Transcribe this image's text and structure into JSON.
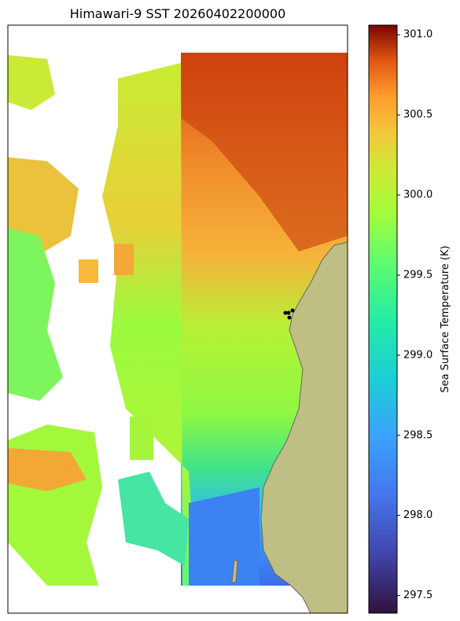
{
  "title": "Himawari-9 SST 20260402200000",
  "colorbar": {
    "label": "Sea Surface Temperature (K)",
    "lim": [
      297.39,
      301.06
    ],
    "ticks": [
      297.5,
      {
        "value": 298,
        "label": "298.0"
      },
      298.5,
      {
        "value": 299,
        "label": "299.0"
      },
      299.5,
      {
        "value": 300,
        "label": "300.0"
      },
      300.5,
      {
        "value": 301,
        "label": "301.0"
      }
    ]
  }
}
